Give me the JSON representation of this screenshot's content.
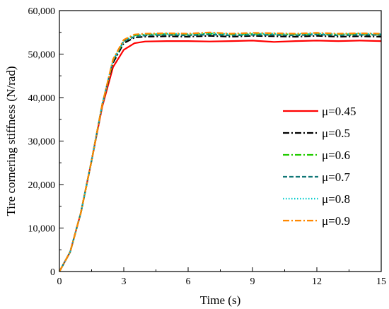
{
  "chart_data": {
    "type": "line",
    "title": "",
    "xlabel": "Time (s)",
    "ylabel": "Tire cornering stiffness (N/rad)",
    "xlim": [
      0,
      15
    ],
    "ylim": [
      0,
      60000
    ],
    "xticks": [
      "0",
      "3",
      "6",
      "9",
      "12",
      "15"
    ],
    "yticks": [
      "0",
      "10,000",
      "20,000",
      "30,000",
      "40,000",
      "50,000",
      "60,000"
    ],
    "grid": false,
    "legend_position": "center-right",
    "series": [
      {
        "name": "μ=0.45",
        "color": "#ff0000",
        "style": "solid",
        "x": [
          0,
          0.5,
          1,
          1.5,
          2,
          2.5,
          3,
          3.5,
          4,
          5,
          6,
          7,
          8,
          9,
          10,
          11,
          12,
          13,
          14,
          15
        ],
        "values": [
          0,
          4500,
          13500,
          25500,
          38000,
          47000,
          51000,
          52500,
          52900,
          53000,
          53000,
          52900,
          53000,
          53100,
          52800,
          53000,
          53100,
          53000,
          53100,
          53000
        ]
      },
      {
        "name": "μ=0.5",
        "color": "#000000",
        "style": "dashdot",
        "x": [
          0,
          0.5,
          1,
          1.5,
          2,
          2.5,
          3,
          3.5,
          4,
          5,
          6,
          7,
          8,
          9,
          10,
          11,
          12,
          13,
          14,
          15
        ],
        "values": [
          0,
          4500,
          13500,
          25500,
          38500,
          48000,
          52500,
          53800,
          54000,
          54100,
          54000,
          54200,
          54000,
          54200,
          54100,
          54000,
          54200,
          54000,
          54100,
          54000
        ]
      },
      {
        "name": "μ=0.6",
        "color": "#22cc00",
        "style": "dashdot",
        "x": [
          0,
          0.5,
          1,
          1.5,
          2,
          2.5,
          3,
          3.5,
          4,
          5,
          6,
          7,
          8,
          9,
          10,
          11,
          12,
          13,
          14,
          15
        ],
        "values": [
          0,
          4500,
          13500,
          25500,
          38500,
          48500,
          53000,
          54300,
          54500,
          54600,
          54500,
          54700,
          54500,
          54600,
          54600,
          54500,
          54600,
          54500,
          54600,
          54500
        ]
      },
      {
        "name": "μ=0.7",
        "color": "#117777",
        "style": "dashed",
        "x": [
          0,
          0.5,
          1,
          1.5,
          2,
          2.5,
          3,
          3.5,
          4,
          5,
          6,
          7,
          8,
          9,
          10,
          11,
          12,
          13,
          14,
          15
        ],
        "values": [
          0,
          4500,
          13500,
          25500,
          38500,
          48500,
          53000,
          54000,
          54300,
          54400,
          54300,
          54500,
          54300,
          54400,
          54400,
          54300,
          54500,
          54300,
          54400,
          54400
        ]
      },
      {
        "name": "μ=0.8",
        "color": "#00cccc",
        "style": "dotted",
        "x": [
          0,
          0.5,
          1,
          1.5,
          2,
          2.5,
          3,
          3.5,
          4,
          5,
          6,
          7,
          8,
          9,
          10,
          11,
          12,
          13,
          14,
          15
        ],
        "values": [
          0,
          4500,
          13500,
          25500,
          38500,
          48500,
          53000,
          54300,
          54500,
          54700,
          54600,
          54800,
          54600,
          54700,
          54700,
          54600,
          54700,
          54600,
          54700,
          54600
        ]
      },
      {
        "name": "μ=0.9",
        "color": "#ff8800",
        "style": "dashdot",
        "x": [
          0,
          0.5,
          1,
          1.5,
          2,
          2.5,
          3,
          3.5,
          4,
          5,
          6,
          7,
          8,
          9,
          10,
          11,
          12,
          13,
          14,
          15
        ],
        "values": [
          0,
          4500,
          13500,
          25500,
          38500,
          48800,
          53300,
          54500,
          54700,
          54800,
          54700,
          55000,
          54700,
          54900,
          54800,
          54700,
          54900,
          54700,
          54800,
          54700
        ]
      }
    ]
  }
}
